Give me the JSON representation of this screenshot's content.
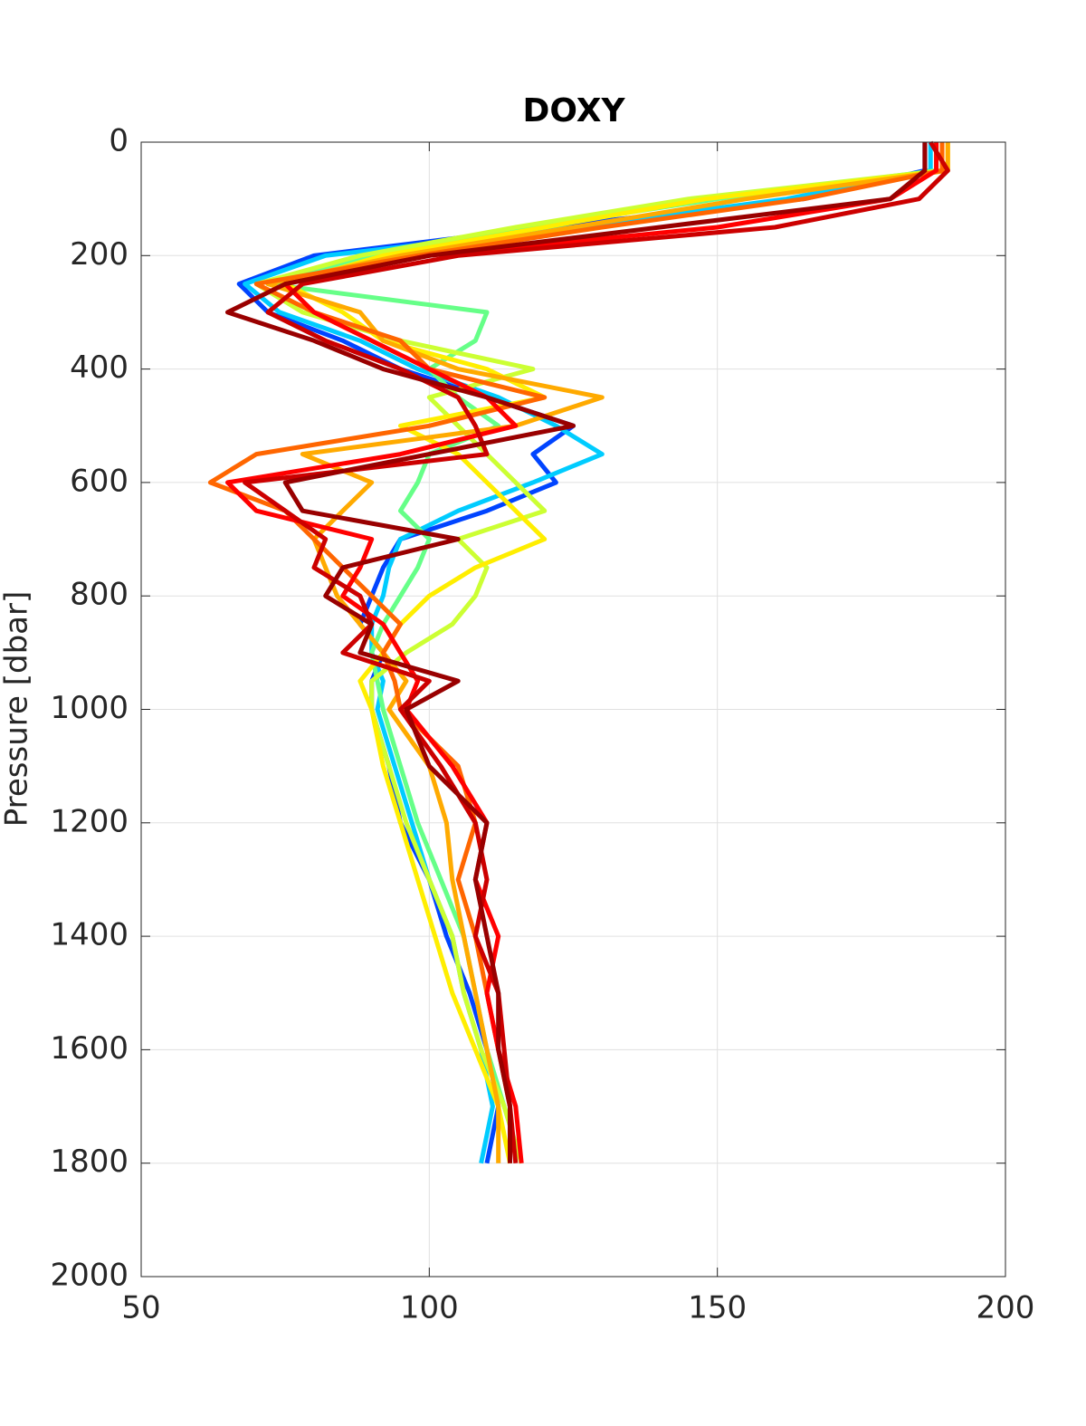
{
  "chart_data": {
    "type": "line",
    "title": "DOXY",
    "y_label": "Pressure [dbar]",
    "y_reversed": true,
    "grid": true,
    "xlim": [
      50,
      200
    ],
    "xticks": [
      50,
      100,
      150,
      200
    ],
    "ylim": [
      0,
      2000
    ],
    "yticks": [
      0,
      200,
      400,
      600,
      800,
      1000,
      1200,
      1400,
      1600,
      1800,
      2000
    ],
    "y": [
      0,
      50,
      100,
      150,
      200,
      250,
      300,
      350,
      400,
      450,
      500,
      550,
      600,
      650,
      700,
      750,
      800,
      850,
      900,
      950,
      1000,
      1100,
      1200,
      1300,
      1400,
      1500,
      1600,
      1700,
      1800
    ],
    "series": [
      {
        "color": "#0044ff",
        "values": [
          186,
          186,
          165,
          120,
          80,
          67,
          72,
          85,
          95,
          110,
          125,
          118,
          122,
          110,
          95,
          92,
          90,
          88,
          92,
          90,
          90,
          93,
          95,
          100,
          103,
          107,
          110,
          112,
          110
        ]
      },
      {
        "color": "#00ccff",
        "values": [
          187,
          187,
          162,
          125,
          82,
          68,
          74,
          88,
          98,
          112,
          122,
          130,
          118,
          105,
          95,
          93,
          92,
          90,
          90,
          92,
          91,
          94,
          97,
          100,
          104,
          106,
          109,
          111,
          109
        ]
      },
      {
        "color": "#66ff88",
        "values": [
          188,
          188,
          150,
          118,
          90,
          72,
          110,
          108,
          100,
          105,
          112,
          100,
          98,
          95,
          100,
          98,
          95,
          92,
          90,
          91,
          92,
          95,
          98,
          102,
          106,
          108,
          110,
          113,
          116
        ]
      },
      {
        "color": "#ccff33",
        "values": [
          189,
          189,
          145,
          115,
          88,
          70,
          78,
          95,
          118,
          100,
          105,
          110,
          115,
          120,
          105,
          110,
          108,
          104,
          96,
          90,
          90,
          93,
          96,
          100,
          104,
          106,
          109,
          113,
          116
        ]
      },
      {
        "color": "#ffee00",
        "values": [
          190,
          190,
          148,
          120,
          92,
          75,
          85,
          92,
          110,
          120,
          95,
          105,
          110,
          115,
          120,
          108,
          100,
          95,
          92,
          88,
          90,
          92,
          95,
          98,
          101,
          104,
          108,
          112,
          114
        ]
      },
      {
        "color": "#ffaa00",
        "values": [
          190,
          190,
          155,
          125,
          95,
          72,
          88,
          92,
          105,
          130,
          115,
          78,
          90,
          85,
          80,
          82,
          84,
          88,
          92,
          96,
          93,
          100,
          103,
          104,
          106,
          108,
          110,
          112,
          112
        ]
      },
      {
        "color": "#ff6600",
        "values": [
          189,
          189,
          165,
          130,
          98,
          70,
          80,
          95,
          100,
          120,
          100,
          70,
          62,
          75,
          80,
          85,
          90,
          95,
          92,
          94,
          95,
          105,
          108,
          105,
          108,
          110,
          112,
          114,
          114
        ]
      },
      {
        "color": "#ff0000",
        "values": [
          188,
          188,
          180,
          150,
          100,
          75,
          80,
          90,
          100,
          110,
          115,
          95,
          65,
          70,
          90,
          88,
          85,
          92,
          95,
          98,
          96,
          104,
          110,
          108,
          112,
          110,
          112,
          115,
          116
        ]
      },
      {
        "color": "#cc0000",
        "values": [
          187,
          190,
          185,
          160,
          105,
          78,
          72,
          82,
          95,
          105,
          108,
          110,
          68,
          75,
          82,
          80,
          88,
          90,
          85,
          100,
          95,
          102,
          108,
          110,
          108,
          112,
          113,
          114,
          115
        ]
      },
      {
        "color": "#990000",
        "values": [
          186,
          186,
          180,
          140,
          100,
          75,
          65,
          80,
          92,
          110,
          125,
          100,
          75,
          78,
          105,
          85,
          82,
          90,
          88,
          105,
          96,
          100,
          110,
          108,
          110,
          112,
          112,
          114,
          114
        ]
      }
    ]
  }
}
